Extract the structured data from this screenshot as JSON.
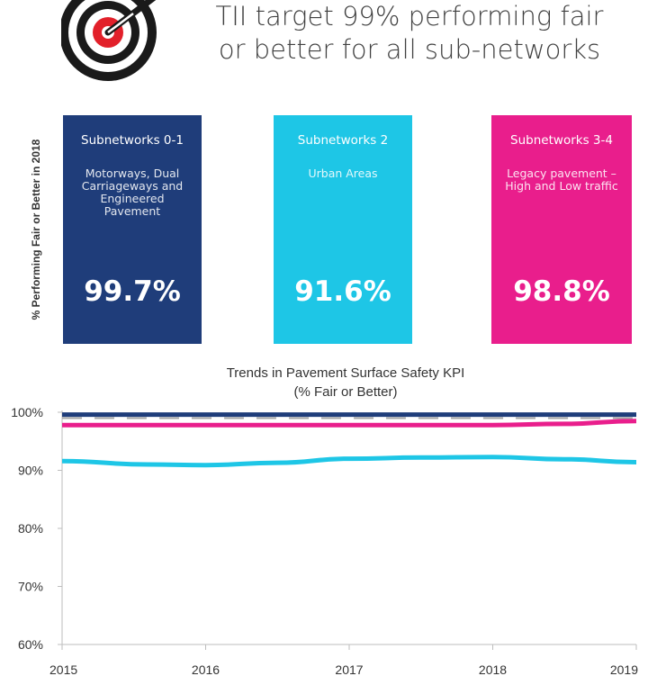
{
  "header": {
    "title_line1": "TII target  99% performing fair",
    "title_line2": "or better for all sub-networks",
    "logo_icon": "target-icon"
  },
  "subnetwork_cards": {
    "ylabel": "% Performing Fair or Better in 2018",
    "cards": [
      {
        "title": "Subnetworks 0-1",
        "description": "Motorways, Dual Carriageways and Engineered Pavement",
        "value": "99.7%",
        "color": "#1f3d7a"
      },
      {
        "title": "Subnetworks 2",
        "description": "Urban Areas",
        "value": "91.6%",
        "color": "#1ec6e6"
      },
      {
        "title": "Subnetworks 3-4",
        "description": "Legacy pavement – High and Low traffic",
        "value": "98.8%",
        "color": "#e91e8c"
      }
    ]
  },
  "chart_data": {
    "type": "line",
    "title": "Trends in Pavement Surface Safety KPI",
    "subtitle": "(% Fair or Better)",
    "x": [
      2015,
      2015.6,
      2016,
      2016.5,
      2017,
      2017.5,
      2018,
      2018.5,
      2019
    ],
    "x_ticks": [
      "2015",
      "2016",
      "2017",
      "2018",
      "2019"
    ],
    "y_ticks": [
      "60%",
      "70%",
      "80%",
      "90%",
      "100%"
    ],
    "ylim": [
      60,
      100
    ],
    "xlim": [
      2015,
      2019
    ],
    "grid": false,
    "series": [
      {
        "color": "#1f3d7a",
        "values": [
          99.6,
          99.6,
          99.6,
          99.6,
          99.6,
          99.6,
          99.6,
          99.6,
          99.6
        ]
      },
      {
        "color": "#e91e8c",
        "values": [
          97.8,
          97.8,
          97.8,
          97.8,
          97.8,
          97.8,
          97.8,
          98.0,
          98.5
        ]
      },
      {
        "color": "#1ec6e6",
        "values": [
          91.6,
          91.0,
          90.9,
          91.3,
          92.0,
          92.2,
          92.3,
          91.9,
          91.4
        ]
      },
      {
        "color": "#a6a6a6",
        "dashed": true,
        "values": [
          99,
          99,
          99,
          99,
          99,
          99,
          99,
          99,
          99
        ]
      }
    ]
  }
}
